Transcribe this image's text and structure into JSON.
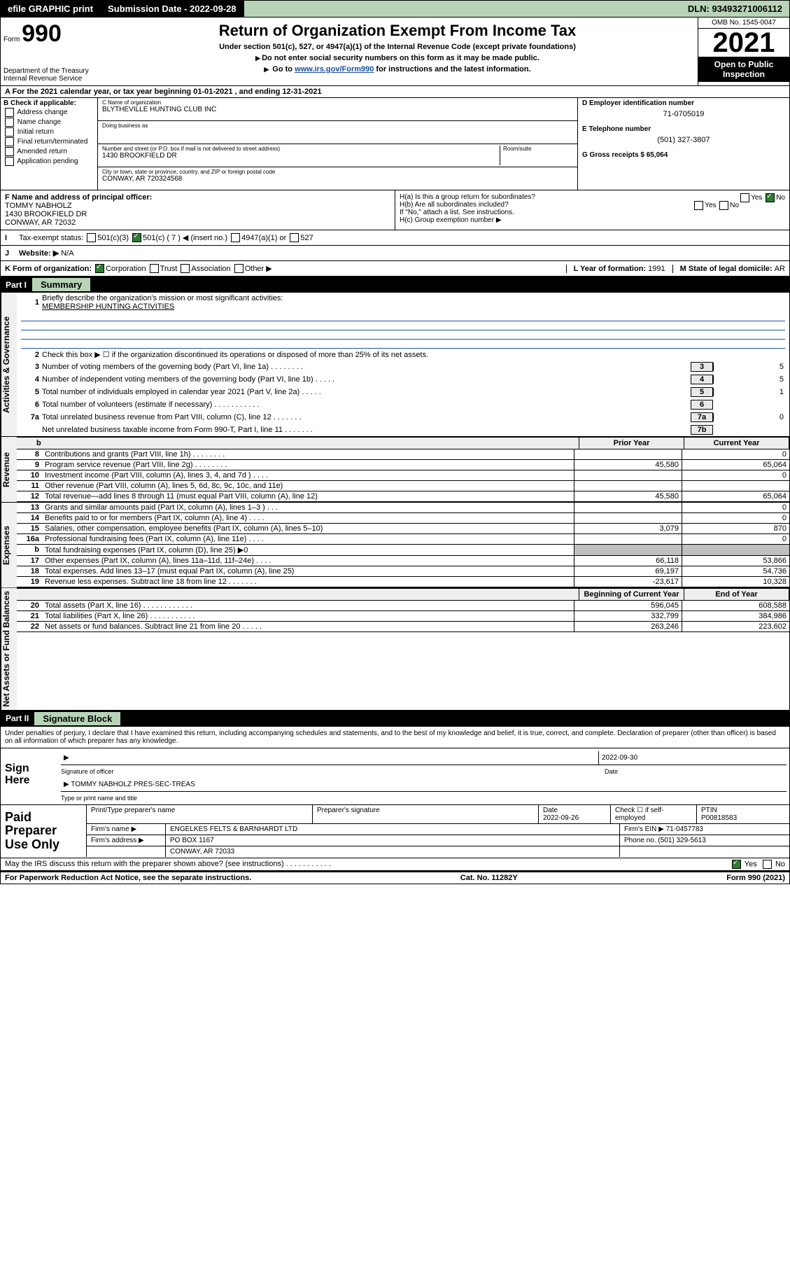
{
  "topbar": {
    "efile": "efile GRAPHIC print",
    "submission_label": "Submission Date - ",
    "submission_date": "2022-09-28",
    "dln_label": "DLN: ",
    "dln": "93493271006112"
  },
  "header": {
    "form_word": "Form",
    "form_no": "990",
    "title": "Return of Organization Exempt From Income Tax",
    "subtitle": "Under section 501(c), 527, or 4947(a)(1) of the Internal Revenue Code (except private foundations)",
    "note1": "Do not enter social security numbers on this form as it may be made public.",
    "note2_pre": "Go to ",
    "note2_link": "www.irs.gov/Form990",
    "note2_post": " for instructions and the latest information.",
    "dept": "Department of the Treasury",
    "irs": "Internal Revenue Service",
    "omb": "OMB No. 1545-0047",
    "year": "2021",
    "open_public": "Open to Public Inspection"
  },
  "row_a": "For the 2021 calendar year, or tax year beginning 01-01-2021  , and ending 12-31-2021",
  "col_b": {
    "hdr": "B Check if applicable:",
    "items": [
      "Address change",
      "Name change",
      "Initial return",
      "Final return/terminated",
      "Amended return",
      "Application pending"
    ]
  },
  "col_c": {
    "name_lbl": "C Name of organization",
    "name": "BLYTHEVILLE HUNTING CLUB INC",
    "dba_lbl": "Doing business as",
    "dba": "",
    "street_lbl": "Number and street (or P.O. box if mail is not delivered to street address)",
    "room_lbl": "Room/suite",
    "street": "1430 BROOKFIELD DR",
    "city_lbl": "City or town, state or province, country, and ZIP or foreign postal code",
    "city": "CONWAY, AR  720324568"
  },
  "col_de": {
    "d_lbl": "D Employer identification number",
    "ein": "71-0705019",
    "e_lbl": "E Telephone number",
    "phone": "(501) 327-3807",
    "g_lbl": "G Gross receipts $ ",
    "gross": "65,064"
  },
  "row_f": {
    "label": "F  Name and address of principal officer:",
    "val": "TOMMY NABHOLZ\n1430 BROOKFIELD DR\nCONWAY, AR  72032"
  },
  "row_h": {
    "ha": "H(a)  Is this a group return for subordinates?",
    "hb": "H(b)  Are all subordinates included?",
    "hb_note": "If \"No,\" attach a list. See instructions.",
    "hc": "H(c)  Group exemption number ▶",
    "yes": "Yes",
    "no": "No"
  },
  "row_i": {
    "label": "Tax-exempt status:",
    "o1": "501(c)(3)",
    "o2": "501(c) ( 7 ) ◀ (insert no.)",
    "o3": "4947(a)(1) or",
    "o4": "527"
  },
  "row_j": {
    "label": "Website: ▶",
    "val": "N/A"
  },
  "row_k": {
    "label": "K Form of organization:",
    "opts": [
      "Corporation",
      "Trust",
      "Association",
      "Other ▶"
    ],
    "l_label": "L Year of formation: ",
    "l_val": "1991",
    "m_label": "M State of legal domicile: ",
    "m_val": "AR"
  },
  "part1": {
    "hdr": "Part I",
    "title": "Summary",
    "line1_lbl": "Briefly describe the organization's mission or most significant activities:",
    "line1_val": "MEMBERSHIP HUNTING ACTIVITIES",
    "line2": "Check this box ▶ ☐  if the organization discontinued its operations or disposed of more than 25% of its net assets.",
    "governance": [
      {
        "n": "3",
        "d": "Number of voting members of the governing body (Part VI, line 1a)  .  .  .  .  .  .  .  .",
        "b": "3",
        "v": "5"
      },
      {
        "n": "4",
        "d": "Number of independent voting members of the governing body (Part VI, line 1b)  .  .  .  .  .",
        "b": "4",
        "v": "5"
      },
      {
        "n": "5",
        "d": "Total number of individuals employed in calendar year 2021 (Part V, line 2a)  .  .  .  .  .",
        "b": "5",
        "v": "1"
      },
      {
        "n": "6",
        "d": "Total number of volunteers (estimate if necessary)  .  .  .  .  .  .  .  .  .  .  .",
        "b": "6",
        "v": ""
      },
      {
        "n": "7a",
        "d": "Total unrelated business revenue from Part VIII, column (C), line 12  .  .  .  .  .  .  .",
        "b": "7a",
        "v": "0"
      },
      {
        "n": "",
        "d": "Net unrelated business taxable income from Form 990-T, Part I, line 11  .  .  .  .  .  .  .",
        "b": "7b",
        "v": ""
      }
    ],
    "col_hdr_b": "b",
    "col_prior": "Prior Year",
    "col_current": "Current Year",
    "revenue": [
      {
        "n": "8",
        "d": "Contributions and grants (Part VIII, line 1h)  .  .  .  .  .  .  .  .",
        "p": "",
        "c": "0"
      },
      {
        "n": "9",
        "d": "Program service revenue (Part VIII, line 2g)  .  .  .  .  .  .  .  .",
        "p": "45,580",
        "c": "65,064"
      },
      {
        "n": "10",
        "d": "Investment income (Part VIII, column (A), lines 3, 4, and 7d )  .  .  .  .",
        "p": "",
        "c": "0"
      },
      {
        "n": "11",
        "d": "Other revenue (Part VIII, column (A), lines 5, 6d, 8c, 9c, 10c, and 11e)",
        "p": "",
        "c": ""
      },
      {
        "n": "12",
        "d": "Total revenue—add lines 8 through 11 (must equal Part VIII, column (A), line 12)",
        "p": "45,580",
        "c": "65,064"
      }
    ],
    "expenses": [
      {
        "n": "13",
        "d": "Grants and similar amounts paid (Part IX, column (A), lines 1–3 )  .  .  .",
        "p": "",
        "c": "0"
      },
      {
        "n": "14",
        "d": "Benefits paid to or for members (Part IX, column (A), line 4)  .  .  .  .",
        "p": "",
        "c": "0"
      },
      {
        "n": "15",
        "d": "Salaries, other compensation, employee benefits (Part IX, column (A), lines 5–10)",
        "p": "3,079",
        "c": "870"
      },
      {
        "n": "16a",
        "d": "Professional fundraising fees (Part IX, column (A), line 11e)  .  .  .  .",
        "p": "",
        "c": "0"
      },
      {
        "n": "b",
        "d": "Total fundraising expenses (Part IX, column (D), line 25) ▶0",
        "p": "shade",
        "c": "shade"
      },
      {
        "n": "17",
        "d": "Other expenses (Part IX, column (A), lines 11a–11d, 11f–24e)  .  .  .  .",
        "p": "66,118",
        "c": "53,866"
      },
      {
        "n": "18",
        "d": "Total expenses. Add lines 13–17 (must equal Part IX, column (A), line 25)",
        "p": "69,197",
        "c": "54,736"
      },
      {
        "n": "19",
        "d": "Revenue less expenses. Subtract line 18 from line 12  .  .  .  .  .  .  .",
        "p": "-23,617",
        "c": "10,328"
      }
    ],
    "col_begin": "Beginning of Current Year",
    "col_end": "End of Year",
    "netassets": [
      {
        "n": "20",
        "d": "Total assets (Part X, line 16)  .  .  .  .  .  .  .  .  .  .  .  .",
        "p": "596,045",
        "c": "608,588"
      },
      {
        "n": "21",
        "d": "Total liabilities (Part X, line 26)  .  .  .  .  .  .  .  .  .  .  .",
        "p": "332,799",
        "c": "384,986"
      },
      {
        "n": "22",
        "d": "Net assets or fund balances. Subtract line 21 from line 20  .  .  .  .  .",
        "p": "263,246",
        "c": "223,602"
      }
    ]
  },
  "part2": {
    "hdr": "Part II",
    "title": "Signature Block",
    "declaration": "Under penalties of perjury, I declare that I have examined this return, including accompanying schedules and statements, and to the best of my knowledge and belief, it is true, correct, and complete. Declaration of preparer (other than officer) is based on all information of which preparer has any knowledge.",
    "sign_here": "Sign Here",
    "sig_officer": "Signature of officer",
    "sig_date": "Date",
    "sig_date_val": "2022-09-30",
    "name_title_val": "TOMMY NABHOLZ  PRES-SEC-TREAS",
    "name_title": "Type or print name and title",
    "paid_label": "Paid Preparer Use Only",
    "p_name": "Print/Type preparer's name",
    "p_sig": "Preparer's signature",
    "p_date_lbl": "Date",
    "p_date": "2022-09-26",
    "p_check": "Check ☐ if self-employed",
    "p_ptin_lbl": "PTIN",
    "p_ptin": "P00818583",
    "firm_name_lbl": "Firm's name    ▶",
    "firm_name": "ENGELKES FELTS & BARNHARDT LTD",
    "firm_ein_lbl": "Firm's EIN ▶",
    "firm_ein": "71-0457783",
    "firm_addr_lbl": "Firm's address ▶",
    "firm_addr": "PO BOX 1167",
    "firm_city": "CONWAY, AR  72033",
    "firm_phone_lbl": "Phone no. ",
    "firm_phone": "(501) 329-5613"
  },
  "footer": {
    "discuss": "May the IRS discuss this return with the preparer shown above? (see instructions)  .  .  .  .  .  .  .  .  .  .  .",
    "yes": "Yes",
    "no": "No",
    "notice": "For Paperwork Reduction Act Notice, see the separate instructions.",
    "cat": "Cat. No. 11282Y",
    "form": "Form 990 (2021)"
  },
  "vtabs": {
    "gov": "Activities & Governance",
    "rev": "Revenue",
    "exp": "Expenses",
    "net": "Net Assets or Fund Balances"
  }
}
